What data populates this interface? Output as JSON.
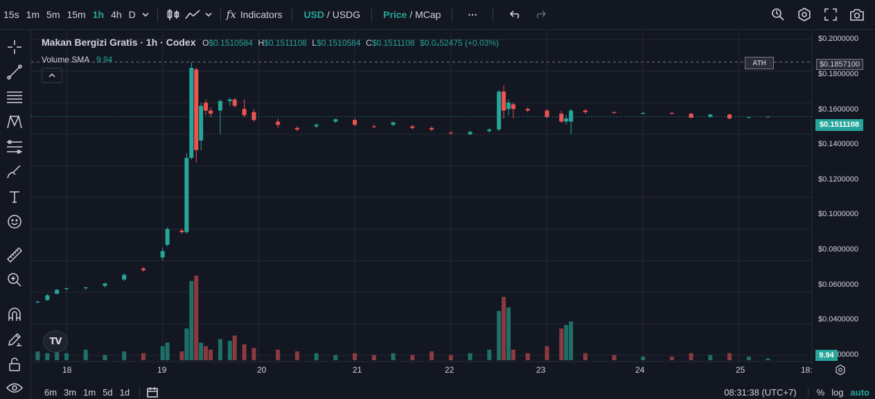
{
  "toolbar": {
    "timeframes": [
      "15s",
      "1m",
      "5m",
      "15m",
      "1h",
      "4h",
      "D"
    ],
    "active_timeframe": "1h",
    "indicators_label": "Indicators",
    "currency_primary": "USD",
    "currency_divider": " / ",
    "currency_secondary": "USDG",
    "mode_primary": "Price",
    "mode_divider": " / ",
    "mode_secondary": "MCap",
    "more_label": "···"
  },
  "legend": {
    "title": "Makan Bergizi Gratis · 1h · Codex",
    "o_key": "O",
    "o_val": "$0.1510584",
    "h_key": "H",
    "h_val": "$0.1511108",
    "l_key": "L",
    "l_val": "$0.1510584",
    "c_key": "C",
    "c_val": "$0.1511108",
    "change": "$0.0₄52475 (+0.03%)",
    "volume_label": "Volume SMA",
    "volume_value": "9.94"
  },
  "price_axis": {
    "ticks": [
      "$0.2000000",
      "$0.1800000",
      "$0.1600000",
      "$0.1400000",
      "$0.1200000",
      "$0.1000000",
      "$0.0800000",
      "$0.0600000",
      "$0.0400000",
      "$0.0000000"
    ],
    "ath_price_label": "$0.1857100",
    "current_price_label": "$0.1511108",
    "volume_label": "9.94"
  },
  "ath_badge": "ATH",
  "time_axis": {
    "labels": [
      "18",
      "19",
      "20",
      "21",
      "22",
      "23",
      "24",
      "25",
      "18:"
    ]
  },
  "bottom_bar": {
    "ranges": [
      "6m",
      "3m",
      "1m",
      "5d",
      "1d"
    ],
    "clock": "08:31:38 (UTC+7)",
    "percent_label": "%",
    "log_label": "log",
    "auto_label": "auto"
  },
  "colors": {
    "up": "#26a69a",
    "down": "#ef5350",
    "volume_up": "#1f6f68",
    "volume_down": "#8b3a3f",
    "background": "#131722",
    "grid": "#262a34"
  },
  "chart_data": {
    "type": "candlestick",
    "series_name": "",
    "price_range": [
      0.0,
      0.2
    ],
    "day_ticks": [
      "18",
      "19",
      "20",
      "21",
      "22",
      "23",
      "24",
      "25"
    ],
    "ath": 0.18571,
    "current": 0.1511108,
    "candles": [
      {
        "x": 17.6,
        "o": 0.033,
        "h": 0.034,
        "l": 0.0325,
        "c": 0.0335,
        "v": 6
      },
      {
        "x": 17.7,
        "o": 0.0335,
        "h": 0.0345,
        "l": 0.033,
        "c": 0.034,
        "v": 5
      },
      {
        "x": 17.8,
        "o": 0.035,
        "h": 0.039,
        "l": 0.0345,
        "c": 0.038,
        "v": 4
      },
      {
        "x": 17.9,
        "o": 0.039,
        "h": 0.042,
        "l": 0.0385,
        "c": 0.0415,
        "v": 5
      },
      {
        "x": 18.0,
        "o": 0.042,
        "h": 0.043,
        "l": 0.041,
        "c": 0.0425,
        "v": 4
      },
      {
        "x": 18.2,
        "o": 0.0425,
        "h": 0.0435,
        "l": 0.0415,
        "c": 0.043,
        "v": 6
      },
      {
        "x": 18.4,
        "o": 0.044,
        "h": 0.046,
        "l": 0.043,
        "c": 0.0455,
        "v": 3
      },
      {
        "x": 18.6,
        "o": 0.048,
        "h": 0.052,
        "l": 0.047,
        "c": 0.051,
        "v": 5
      },
      {
        "x": 18.8,
        "o": 0.055,
        "h": 0.056,
        "l": 0.053,
        "c": 0.054,
        "v": 4
      },
      {
        "x": 19.0,
        "o": 0.062,
        "h": 0.068,
        "l": 0.06,
        "c": 0.066,
        "v": 8
      },
      {
        "x": 19.05,
        "o": 0.07,
        "h": 0.081,
        "l": 0.069,
        "c": 0.08,
        "v": 10
      },
      {
        "x": 19.2,
        "o": 0.079,
        "h": 0.08,
        "l": 0.077,
        "c": 0.078,
        "v": 5
      },
      {
        "x": 19.25,
        "o": 0.078,
        "h": 0.128,
        "l": 0.077,
        "c": 0.125,
        "v": 18
      },
      {
        "x": 19.3,
        "o": 0.125,
        "h": 0.18571,
        "l": 0.124,
        "c": 0.182,
        "v": 45
      },
      {
        "x": 19.35,
        "o": 0.181,
        "h": 0.182,
        "l": 0.122,
        "c": 0.13,
        "v": 48
      },
      {
        "x": 19.4,
        "o": 0.136,
        "h": 0.16,
        "l": 0.13,
        "c": 0.158,
        "v": 10
      },
      {
        "x": 19.45,
        "o": 0.16,
        "h": 0.162,
        "l": 0.152,
        "c": 0.155,
        "v": 8
      },
      {
        "x": 19.5,
        "o": 0.155,
        "h": 0.157,
        "l": 0.151,
        "c": 0.153,
        "v": 6
      },
      {
        "x": 19.6,
        "o": 0.155,
        "h": 0.162,
        "l": 0.14,
        "c": 0.161,
        "v": 12
      },
      {
        "x": 19.7,
        "o": 0.161,
        "h": 0.163,
        "l": 0.158,
        "c": 0.162,
        "v": 11
      },
      {
        "x": 19.75,
        "o": 0.162,
        "h": 0.163,
        "l": 0.157,
        "c": 0.158,
        "v": 14
      },
      {
        "x": 19.85,
        "o": 0.156,
        "h": 0.162,
        "l": 0.151,
        "c": 0.152,
        "v": 9
      },
      {
        "x": 19.95,
        "o": 0.154,
        "h": 0.156,
        "l": 0.148,
        "c": 0.149,
        "v": 7
      },
      {
        "x": 20.2,
        "o": 0.148,
        "h": 0.15,
        "l": 0.144,
        "c": 0.146,
        "v": 6
      },
      {
        "x": 20.4,
        "o": 0.144,
        "h": 0.145,
        "l": 0.142,
        "c": 0.143,
        "v": 5
      },
      {
        "x": 20.6,
        "o": 0.145,
        "h": 0.147,
        "l": 0.144,
        "c": 0.146,
        "v": 4
      },
      {
        "x": 20.8,
        "o": 0.148,
        "h": 0.15,
        "l": 0.147,
        "c": 0.1495,
        "v": 3
      },
      {
        "x": 21.0,
        "o": 0.149,
        "h": 0.15,
        "l": 0.145,
        "c": 0.146,
        "v": 4
      },
      {
        "x": 21.2,
        "o": 0.145,
        "h": 0.146,
        "l": 0.144,
        "c": 0.1445,
        "v": 3
      },
      {
        "x": 21.4,
        "o": 0.146,
        "h": 0.148,
        "l": 0.145,
        "c": 0.1475,
        "v": 4
      },
      {
        "x": 21.6,
        "o": 0.145,
        "h": 0.146,
        "l": 0.143,
        "c": 0.144,
        "v": 3
      },
      {
        "x": 21.8,
        "o": 0.144,
        "h": 0.145,
        "l": 0.142,
        "c": 0.143,
        "v": 5
      },
      {
        "x": 22.0,
        "o": 0.141,
        "h": 0.142,
        "l": 0.14,
        "c": 0.1405,
        "v": 3
      },
      {
        "x": 22.2,
        "o": 0.14,
        "h": 0.142,
        "l": 0.1395,
        "c": 0.1415,
        "v": 4
      },
      {
        "x": 22.4,
        "o": 0.142,
        "h": 0.144,
        "l": 0.141,
        "c": 0.143,
        "v": 6
      },
      {
        "x": 22.5,
        "o": 0.143,
        "h": 0.168,
        "l": 0.142,
        "c": 0.167,
        "v": 28
      },
      {
        "x": 22.55,
        "o": 0.167,
        "h": 0.171,
        "l": 0.15,
        "c": 0.155,
        "v": 36
      },
      {
        "x": 22.6,
        "o": 0.156,
        "h": 0.162,
        "l": 0.152,
        "c": 0.16,
        "v": 30
      },
      {
        "x": 22.65,
        "o": 0.159,
        "h": 0.16,
        "l": 0.15,
        "c": 0.156,
        "v": 6
      },
      {
        "x": 22.8,
        "o": 0.156,
        "h": 0.157,
        "l": 0.154,
        "c": 0.155,
        "v": 4
      },
      {
        "x": 23.0,
        "o": 0.155,
        "h": 0.156,
        "l": 0.15,
        "c": 0.151,
        "v": 8
      },
      {
        "x": 23.15,
        "o": 0.153,
        "h": 0.155,
        "l": 0.147,
        "c": 0.148,
        "v": 18
      },
      {
        "x": 23.2,
        "o": 0.148,
        "h": 0.152,
        "l": 0.146,
        "c": 0.15,
        "v": 20
      },
      {
        "x": 23.25,
        "o": 0.148,
        "h": 0.156,
        "l": 0.14,
        "c": 0.155,
        "v": 22
      },
      {
        "x": 23.4,
        "o": 0.155,
        "h": 0.156,
        "l": 0.153,
        "c": 0.154,
        "v": 4
      },
      {
        "x": 23.7,
        "o": 0.154,
        "h": 0.1545,
        "l": 0.153,
        "c": 0.1535,
        "v": 3
      },
      {
        "x": 24.0,
        "o": 0.153,
        "h": 0.154,
        "l": 0.1525,
        "c": 0.1535,
        "v": 2
      },
      {
        "x": 24.3,
        "o": 0.1535,
        "h": 0.154,
        "l": 0.1525,
        "c": 0.153,
        "v": 2
      },
      {
        "x": 24.5,
        "o": 0.153,
        "h": 0.1535,
        "l": 0.15,
        "c": 0.1505,
        "v": 4
      },
      {
        "x": 24.7,
        "o": 0.151,
        "h": 0.153,
        "l": 0.1505,
        "c": 0.1525,
        "v": 3
      },
      {
        "x": 24.9,
        "o": 0.1525,
        "h": 0.153,
        "l": 0.1495,
        "c": 0.15,
        "v": 4
      },
      {
        "x": 25.1,
        "o": 0.1505,
        "h": 0.1512,
        "l": 0.15,
        "c": 0.1508,
        "v": 2
      },
      {
        "x": 25.3,
        "o": 0.1510584,
        "h": 0.1511108,
        "l": 0.1510584,
        "c": 0.1511108,
        "v": 1
      }
    ]
  }
}
